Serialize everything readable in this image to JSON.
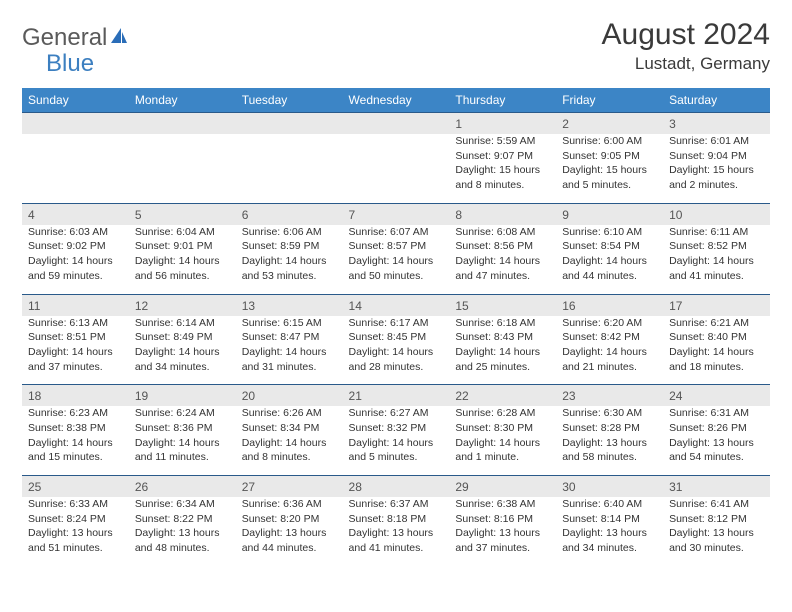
{
  "logo": {
    "text1": "General",
    "text2": "Blue"
  },
  "title": "August 2024",
  "location": "Lustadt, Germany",
  "colors": {
    "header_bg": "#3c85c6",
    "header_text": "#ffffff",
    "stripe_bg": "#e9e9e9",
    "border": "#2a5a8a",
    "body_text": "#333333",
    "daynum_text": "#555555",
    "logo_gray": "#5a5a5a",
    "logo_blue": "#3c7fc0"
  },
  "dow": [
    "Sunday",
    "Monday",
    "Tuesday",
    "Wednesday",
    "Thursday",
    "Friday",
    "Saturday"
  ],
  "weeks": [
    [
      null,
      null,
      null,
      null,
      {
        "d": "1",
        "sr": "5:59 AM",
        "ss": "9:07 PM",
        "dl": "15 hours and 8 minutes."
      },
      {
        "d": "2",
        "sr": "6:00 AM",
        "ss": "9:05 PM",
        "dl": "15 hours and 5 minutes."
      },
      {
        "d": "3",
        "sr": "6:01 AM",
        "ss": "9:04 PM",
        "dl": "15 hours and 2 minutes."
      }
    ],
    [
      {
        "d": "4",
        "sr": "6:03 AM",
        "ss": "9:02 PM",
        "dl": "14 hours and 59 minutes."
      },
      {
        "d": "5",
        "sr": "6:04 AM",
        "ss": "9:01 PM",
        "dl": "14 hours and 56 minutes."
      },
      {
        "d": "6",
        "sr": "6:06 AM",
        "ss": "8:59 PM",
        "dl": "14 hours and 53 minutes."
      },
      {
        "d": "7",
        "sr": "6:07 AM",
        "ss": "8:57 PM",
        "dl": "14 hours and 50 minutes."
      },
      {
        "d": "8",
        "sr": "6:08 AM",
        "ss": "8:56 PM",
        "dl": "14 hours and 47 minutes."
      },
      {
        "d": "9",
        "sr": "6:10 AM",
        "ss": "8:54 PM",
        "dl": "14 hours and 44 minutes."
      },
      {
        "d": "10",
        "sr": "6:11 AM",
        "ss": "8:52 PM",
        "dl": "14 hours and 41 minutes."
      }
    ],
    [
      {
        "d": "11",
        "sr": "6:13 AM",
        "ss": "8:51 PM",
        "dl": "14 hours and 37 minutes."
      },
      {
        "d": "12",
        "sr": "6:14 AM",
        "ss": "8:49 PM",
        "dl": "14 hours and 34 minutes."
      },
      {
        "d": "13",
        "sr": "6:15 AM",
        "ss": "8:47 PM",
        "dl": "14 hours and 31 minutes."
      },
      {
        "d": "14",
        "sr": "6:17 AM",
        "ss": "8:45 PM",
        "dl": "14 hours and 28 minutes."
      },
      {
        "d": "15",
        "sr": "6:18 AM",
        "ss": "8:43 PM",
        "dl": "14 hours and 25 minutes."
      },
      {
        "d": "16",
        "sr": "6:20 AM",
        "ss": "8:42 PM",
        "dl": "14 hours and 21 minutes."
      },
      {
        "d": "17",
        "sr": "6:21 AM",
        "ss": "8:40 PM",
        "dl": "14 hours and 18 minutes."
      }
    ],
    [
      {
        "d": "18",
        "sr": "6:23 AM",
        "ss": "8:38 PM",
        "dl": "14 hours and 15 minutes."
      },
      {
        "d": "19",
        "sr": "6:24 AM",
        "ss": "8:36 PM",
        "dl": "14 hours and 11 minutes."
      },
      {
        "d": "20",
        "sr": "6:26 AM",
        "ss": "8:34 PM",
        "dl": "14 hours and 8 minutes."
      },
      {
        "d": "21",
        "sr": "6:27 AM",
        "ss": "8:32 PM",
        "dl": "14 hours and 5 minutes."
      },
      {
        "d": "22",
        "sr": "6:28 AM",
        "ss": "8:30 PM",
        "dl": "14 hours and 1 minute."
      },
      {
        "d": "23",
        "sr": "6:30 AM",
        "ss": "8:28 PM",
        "dl": "13 hours and 58 minutes."
      },
      {
        "d": "24",
        "sr": "6:31 AM",
        "ss": "8:26 PM",
        "dl": "13 hours and 54 minutes."
      }
    ],
    [
      {
        "d": "25",
        "sr": "6:33 AM",
        "ss": "8:24 PM",
        "dl": "13 hours and 51 minutes."
      },
      {
        "d": "26",
        "sr": "6:34 AM",
        "ss": "8:22 PM",
        "dl": "13 hours and 48 minutes."
      },
      {
        "d": "27",
        "sr": "6:36 AM",
        "ss": "8:20 PM",
        "dl": "13 hours and 44 minutes."
      },
      {
        "d": "28",
        "sr": "6:37 AM",
        "ss": "8:18 PM",
        "dl": "13 hours and 41 minutes."
      },
      {
        "d": "29",
        "sr": "6:38 AM",
        "ss": "8:16 PM",
        "dl": "13 hours and 37 minutes."
      },
      {
        "d": "30",
        "sr": "6:40 AM",
        "ss": "8:14 PM",
        "dl": "13 hours and 34 minutes."
      },
      {
        "d": "31",
        "sr": "6:41 AM",
        "ss": "8:12 PM",
        "dl": "13 hours and 30 minutes."
      }
    ]
  ],
  "labels": {
    "sunrise": "Sunrise:",
    "sunset": "Sunset:",
    "daylight": "Daylight:"
  }
}
